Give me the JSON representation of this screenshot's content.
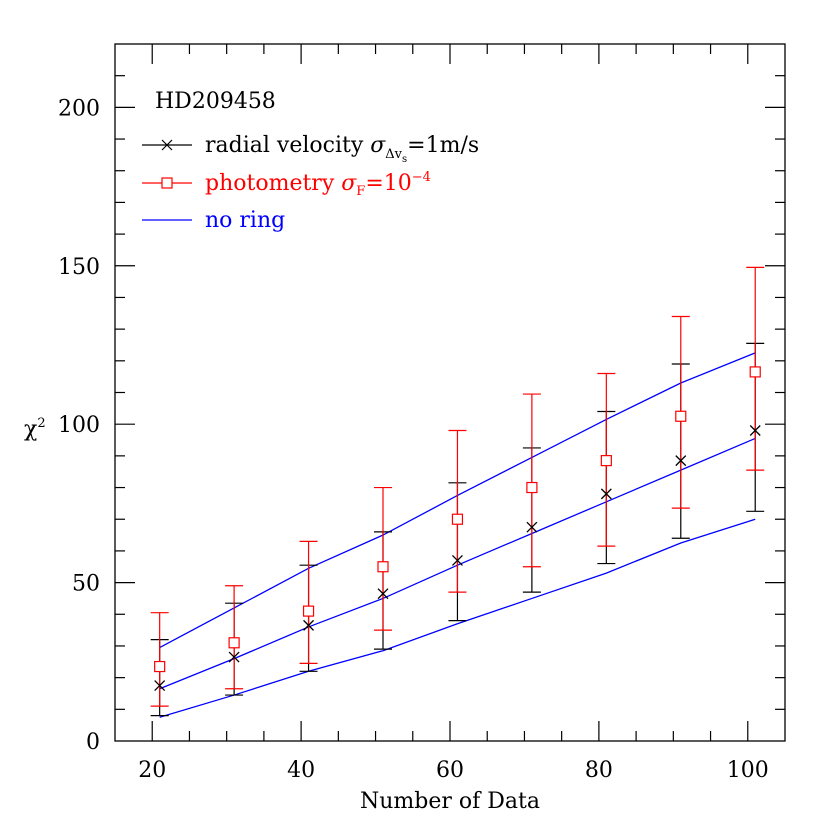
{
  "chart_data": {
    "type": "line",
    "title": "HD209458",
    "xlabel": "Number of Data",
    "ylabel": "χ",
    "ylabel_sup": "2",
    "xlim": [
      15,
      105
    ],
    "ylim": [
      0,
      220
    ],
    "xticks": [
      20,
      40,
      60,
      80,
      100
    ],
    "yticks": [
      0,
      50,
      100,
      150,
      200
    ],
    "x": [
      21,
      31,
      41,
      51,
      61,
      71,
      81,
      91,
      101
    ],
    "legend": {
      "rv": {
        "label": "radial velocity",
        "sigma": "σ",
        "sub": "Δv",
        "subsub": "s",
        "value": "=1m/s"
      },
      "ph": {
        "label": "photometry",
        "sigma": "σ",
        "sub": "F",
        "value": "=10",
        "exp": "−4"
      },
      "nr": {
        "label": "no ring"
      }
    },
    "series": [
      {
        "name": "radial velocity",
        "color": "#000000",
        "marker": "x",
        "values": [
          17.5,
          26.5,
          36.5,
          46.5,
          57.0,
          67.5,
          78.0,
          88.5,
          98.0
        ],
        "err_low": [
          9.5,
          12,
          14.5,
          17.5,
          19,
          20.5,
          22,
          24.5,
          25.5
        ],
        "err_high": [
          14.5,
          17,
          19,
          19.5,
          24.5,
          25,
          26,
          30.5,
          27.5
        ]
      },
      {
        "name": "photometry",
        "color": "#ff0000",
        "marker": "square",
        "values": [
          23.5,
          31.0,
          41.0,
          55.0,
          70.0,
          80.0,
          88.5,
          102.5,
          116.5
        ],
        "err_low": [
          12.5,
          14.5,
          16.5,
          20,
          23,
          25,
          27,
          29,
          31
        ],
        "err_high": [
          17,
          18,
          22,
          25,
          28,
          29.5,
          27.5,
          31.5,
          33
        ]
      },
      {
        "name": "no ring",
        "color": "#0000ff",
        "marker": "none",
        "lines": [
          [
            29.5,
            42,
            54.5,
            65,
            77.5,
            89.5,
            101.5,
            113,
            122.5
          ],
          [
            16.5,
            26,
            36,
            45,
            55.5,
            65.5,
            75.5,
            85.5,
            95.5
          ],
          [
            7.5,
            14.5,
            22,
            28.5,
            37,
            45,
            53,
            62.5,
            70
          ]
        ]
      }
    ],
    "grid": false,
    "legend_position": "top-left"
  }
}
